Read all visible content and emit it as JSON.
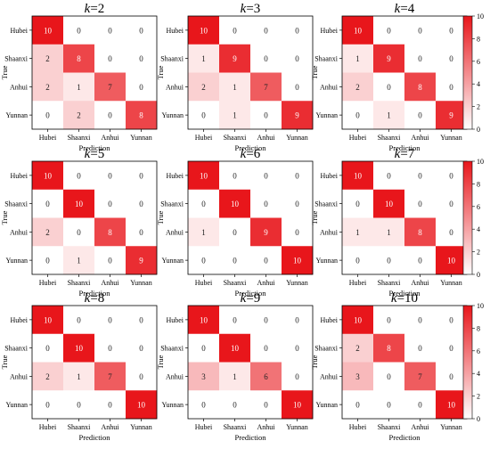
{
  "figure": {
    "colormap": {
      "low": "#ffffff",
      "high": "#e8161b",
      "vmin": 0,
      "vmax": 10
    },
    "colorbar_ticks": [
      0,
      2,
      4,
      6,
      8,
      10
    ],
    "k_label": "k",
    "k_equals": "=",
    "cell_text_dark": "#222222",
    "cell_text_light": "#ffffff"
  },
  "chart_data": [
    {
      "type": "heatmap",
      "k": "2",
      "xlabel": "Prediction",
      "ylabel": "True",
      "categories": [
        "Hubei",
        "Shaanxi",
        "Anhui",
        "Yunnan"
      ],
      "matrix": [
        [
          10,
          0,
          0,
          0
        ],
        [
          2,
          8,
          0,
          0
        ],
        [
          2,
          1,
          7,
          0
        ],
        [
          0,
          2,
          0,
          8
        ]
      ]
    },
    {
      "type": "heatmap",
      "k": "3",
      "xlabel": "Prediction",
      "ylabel": "True",
      "categories": [
        "Hubei",
        "Shaanxi",
        "Anhui",
        "Yunnan"
      ],
      "matrix": [
        [
          10,
          0,
          0,
          0
        ],
        [
          1,
          9,
          0,
          0
        ],
        [
          2,
          1,
          7,
          0
        ],
        [
          0,
          1,
          0,
          9
        ]
      ]
    },
    {
      "type": "heatmap",
      "k": "4",
      "xlabel": "Prediction",
      "ylabel": "True",
      "categories": [
        "Hubei",
        "Shaanxi",
        "Anhui",
        "Yunnan"
      ],
      "matrix": [
        [
          10,
          0,
          0,
          0
        ],
        [
          1,
          9,
          0,
          0
        ],
        [
          2,
          0,
          8,
          0
        ],
        [
          0,
          1,
          0,
          9
        ]
      ]
    },
    {
      "type": "heatmap",
      "k": "5",
      "xlabel": "Prediction",
      "ylabel": "True",
      "categories": [
        "Hubei",
        "Shaanxi",
        "Anhui",
        "Yunnan"
      ],
      "matrix": [
        [
          10,
          0,
          0,
          0
        ],
        [
          0,
          10,
          0,
          0
        ],
        [
          2,
          0,
          8,
          0
        ],
        [
          0,
          1,
          0,
          9
        ]
      ]
    },
    {
      "type": "heatmap",
      "k": "6",
      "xlabel": "Prediction",
      "ylabel": "True",
      "categories": [
        "Hubei",
        "Shaanxi",
        "Anhui",
        "Yunnan"
      ],
      "matrix": [
        [
          10,
          0,
          0,
          0
        ],
        [
          0,
          10,
          0,
          0
        ],
        [
          1,
          0,
          9,
          0
        ],
        [
          0,
          0,
          0,
          10
        ]
      ]
    },
    {
      "type": "heatmap",
      "k": "7",
      "xlabel": "Prediction",
      "ylabel": "True",
      "categories": [
        "Hubei",
        "Shaanxi",
        "Anhui",
        "Yunnan"
      ],
      "matrix": [
        [
          10,
          0,
          0,
          0
        ],
        [
          0,
          10,
          0,
          0
        ],
        [
          1,
          1,
          8,
          0
        ],
        [
          0,
          0,
          0,
          10
        ]
      ]
    },
    {
      "type": "heatmap",
      "k": "8",
      "xlabel": "Prediction",
      "ylabel": "True",
      "categories": [
        "Hubei",
        "Shaanxi",
        "Anhui",
        "Yunnan"
      ],
      "matrix": [
        [
          10,
          0,
          0,
          0
        ],
        [
          0,
          10,
          0,
          0
        ],
        [
          2,
          1,
          7,
          0
        ],
        [
          0,
          0,
          0,
          10
        ]
      ]
    },
    {
      "type": "heatmap",
      "k": "9",
      "xlabel": "Prediction",
      "ylabel": "True",
      "categories": [
        "Hubei",
        "Shaanxi",
        "Anhui",
        "Yunnan"
      ],
      "matrix": [
        [
          10,
          0,
          0,
          0
        ],
        [
          0,
          10,
          0,
          0
        ],
        [
          3,
          1,
          6,
          0
        ],
        [
          0,
          0,
          0,
          10
        ]
      ]
    },
    {
      "type": "heatmap",
      "k": "10",
      "xlabel": "Prediction",
      "ylabel": "True",
      "categories": [
        "Hubei",
        "Shaanxi",
        "Anhui",
        "Yunnan"
      ],
      "matrix": [
        [
          10,
          0,
          0,
          0
        ],
        [
          2,
          8,
          0,
          0
        ],
        [
          3,
          0,
          7,
          0
        ],
        [
          0,
          0,
          0,
          10
        ]
      ]
    }
  ]
}
